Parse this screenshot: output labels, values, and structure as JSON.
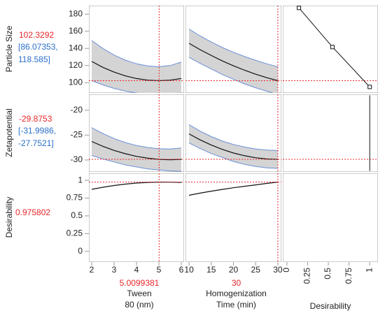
{
  "chart_data": {
    "type": "profiler",
    "x_axes": [
      {
        "label": [
          "Tween",
          "80 (nm)"
        ],
        "current": 5.0099381,
        "xlim": [
          1.875,
          6.125
        ],
        "xticks": [
          2,
          3,
          4,
          5,
          6
        ],
        "x": [
          2,
          2.5,
          3,
          3.5,
          4,
          4.5,
          5,
          5.5,
          6
        ]
      },
      {
        "label": [
          "Homogenization",
          "Time (min)"
        ],
        "current": 30,
        "xlim": [
          9.2,
          30.8
        ],
        "xticks": [
          10,
          15,
          20,
          25,
          30
        ],
        "x": [
          10,
          12.5,
          15,
          17.5,
          20,
          22.5,
          25,
          27.5,
          30
        ]
      },
      {
        "label": [
          "Desirability"
        ],
        "xlim": [
          -0.05,
          1.1
        ],
        "xticks": [
          0,
          0.25,
          0.5,
          0.75,
          1
        ]
      }
    ],
    "rows": [
      {
        "label": "Particle Size",
        "current": 102.3292,
        "ci_label": [
          "[86.07353,",
          "118.585]"
        ],
        "ylim": [
          88,
          190
        ],
        "yticks": [
          100,
          120,
          140,
          160,
          180
        ],
        "traces": [
          {
            "mean": [
              124.8,
              117.9,
              112.3,
              107.9,
              104.8,
              102.9,
              102.3,
              102.9,
              104.8
            ],
            "upper": [
              149.2,
              139.9,
              132.2,
              126.3,
              122,
              119.5,
              118.6,
              120,
              124
            ],
            "lower": [
              102.3,
              97.4,
              93.3,
              90.1,
              87.9,
              86.5,
              86.1,
              86.5,
              87.9
            ]
          },
          {
            "mean": [
              145.9,
              138.5,
              131.7,
              125.4,
              119.7,
              114.5,
              109.9,
              105.8,
              102.3
            ],
            "upper": [
              162.5,
              154.5,
              147.5,
              141,
              135.5,
              130.5,
              126,
              122,
              118.6
            ],
            "lower": [
              129.5,
              122.5,
              116,
              109.5,
              104,
              98.5,
              94,
              90,
              86.1
            ]
          }
        ],
        "desirability": {
          "x": [
            0.145,
            0.55,
            1
          ],
          "y": [
            187.3,
            141.6,
            95
          ],
          "markers": true
        }
      },
      {
        "label": "Zetapotential",
        "current": -29.8753,
        "ci_label": [
          "[-31.9986,",
          "-27.7521]"
        ],
        "ylim": [
          -32.4,
          -16.8
        ],
        "yticks": [
          -30,
          -25,
          -20
        ],
        "traces": [
          {
            "mean": [
              -26.28,
              -27.25,
              -28.08,
              -28.75,
              -29.28,
              -29.65,
              -29.88,
              -29.95,
              -29.88
            ],
            "upper": [
              -23.5,
              -24.7,
              -25.7,
              -26.5,
              -27.1,
              -27.5,
              -27.75,
              -27.8,
              -27.6
            ],
            "lower": [
              -29.1,
              -29.8,
              -30.4,
              -31,
              -31.4,
              -31.8,
              -32,
              -32.2,
              -32.3
            ]
          },
          {
            "mean": [
              -24.76,
              -25.96,
              -27,
              -27.88,
              -28.6,
              -29.16,
              -29.56,
              -29.8,
              -29.88
            ],
            "upper": [
              -22.9,
              -24.2,
              -25.3,
              -26.2,
              -26.9,
              -27.4,
              -27.8,
              -28,
              -28.1
            ],
            "lower": [
              -26.6,
              -27.7,
              -28.7,
              -29.5,
              -30.3,
              -30.9,
              -31.3,
              -31.6,
              -31.7
            ]
          }
        ],
        "desirability": {
          "x": [
            1,
            1
          ],
          "y": [
            -17,
            -32.2
          ],
          "markers": false
        }
      },
      {
        "label": "Desirability",
        "current": 0.975802,
        "ylim": [
          -0.15,
          1.1
        ],
        "yticks": [
          0,
          0.25,
          0.5,
          0.75,
          1
        ],
        "traces": [
          {
            "mean": [
              0.874,
              0.903,
              0.928,
              0.947,
              0.962,
              0.971,
              0.976,
              0.975,
              0.97
            ]
          },
          {
            "mean": [
              0.79,
              0.82,
              0.848,
              0.873,
              0.896,
              0.917,
              0.937,
              0.957,
              0.976
            ]
          }
        ]
      }
    ]
  }
}
